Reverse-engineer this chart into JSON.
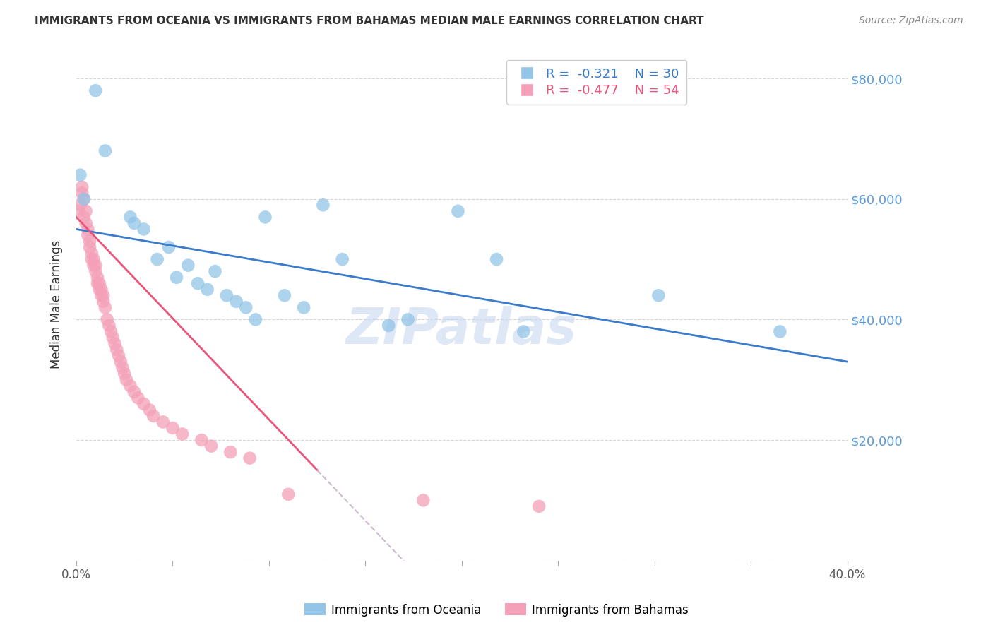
{
  "title": "IMMIGRANTS FROM OCEANIA VS IMMIGRANTS FROM BAHAMAS MEDIAN MALE EARNINGS CORRELATION CHART",
  "source": "Source: ZipAtlas.com",
  "ylabel": "Median Male Earnings",
  "r_oceania": -0.321,
  "n_oceania": 30,
  "r_bahamas": -0.477,
  "n_bahamas": 54,
  "xlim": [
    0.0,
    0.4
  ],
  "ylim": [
    0,
    85000
  ],
  "yticks": [
    0,
    20000,
    40000,
    60000,
    80000
  ],
  "xticks": [
    0.0,
    0.05,
    0.1,
    0.15,
    0.2,
    0.25,
    0.3,
    0.35,
    0.4
  ],
  "color_oceania": "#92C5E8",
  "color_bahamas": "#F4A0B8",
  "line_color_oceania": "#3A7CC9",
  "line_color_bahamas": "#E8547A",
  "background_color": "#FFFFFF",
  "watermark": "ZIPatlas",
  "watermark_color": "#C8D8F0",
  "oceania_x": [
    0.002,
    0.004,
    0.01,
    0.015,
    0.028,
    0.03,
    0.035,
    0.042,
    0.048,
    0.052,
    0.058,
    0.063,
    0.068,
    0.072,
    0.078,
    0.083,
    0.088,
    0.093,
    0.098,
    0.108,
    0.118,
    0.128,
    0.138,
    0.162,
    0.172,
    0.198,
    0.218,
    0.232,
    0.302,
    0.365
  ],
  "oceania_y": [
    64000,
    60000,
    78000,
    68000,
    57000,
    56000,
    55000,
    50000,
    52000,
    47000,
    49000,
    46000,
    45000,
    48000,
    44000,
    43000,
    42000,
    40000,
    57000,
    44000,
    42000,
    59000,
    50000,
    39000,
    40000,
    58000,
    50000,
    38000,
    44000,
    38000
  ],
  "bahamas_x": [
    0.001,
    0.002,
    0.003,
    0.003,
    0.004,
    0.004,
    0.005,
    0.005,
    0.006,
    0.006,
    0.007,
    0.007,
    0.008,
    0.008,
    0.009,
    0.009,
    0.01,
    0.01,
    0.011,
    0.011,
    0.012,
    0.012,
    0.013,
    0.013,
    0.014,
    0.014,
    0.015,
    0.016,
    0.017,
    0.018,
    0.019,
    0.02,
    0.021,
    0.022,
    0.023,
    0.024,
    0.025,
    0.026,
    0.028,
    0.03,
    0.032,
    0.035,
    0.038,
    0.04,
    0.045,
    0.05,
    0.055,
    0.065,
    0.07,
    0.08,
    0.09,
    0.11,
    0.18,
    0.24
  ],
  "bahamas_y": [
    58000,
    59000,
    62000,
    61000,
    60000,
    57000,
    56000,
    58000,
    54000,
    55000,
    52000,
    53000,
    50000,
    51000,
    49000,
    50000,
    48000,
    49000,
    46000,
    47000,
    45000,
    46000,
    44000,
    45000,
    43000,
    44000,
    42000,
    40000,
    39000,
    38000,
    37000,
    36000,
    35000,
    34000,
    33000,
    32000,
    31000,
    30000,
    29000,
    28000,
    27000,
    26000,
    25000,
    24000,
    23000,
    22000,
    21000,
    20000,
    19000,
    18000,
    17000,
    11000,
    10000,
    9000
  ],
  "trendline_oceania_x0": 0.0,
  "trendline_oceania_y0": 55000,
  "trendline_oceania_x1": 0.4,
  "trendline_oceania_y1": 33000,
  "trendline_bahamas_x0": 0.0,
  "trendline_bahamas_y0": 57000,
  "trendline_bahamas_x1": 0.125,
  "trendline_bahamas_y1": 15000
}
